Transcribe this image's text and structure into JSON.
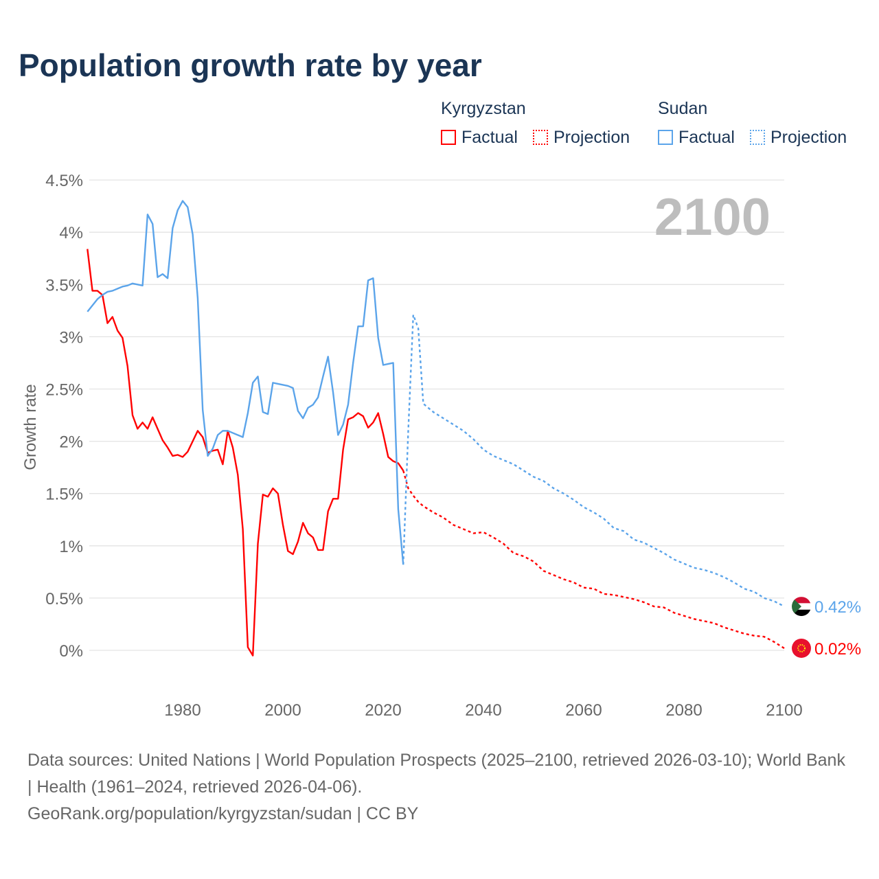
{
  "title": "Population growth rate by year",
  "legend": {
    "groups": [
      {
        "name": "Kyrgyzstan",
        "color": "#ff0000",
        "factual": "Factual",
        "projection": "Projection"
      },
      {
        "name": "Sudan",
        "color": "#5ba4ea",
        "factual": "Factual",
        "projection": "Projection"
      }
    ]
  },
  "footer": {
    "line1": "Data sources: United Nations | World Population Prospects (2025–2100, retrieved 2026-03-10); World Bank | Health (1961–2024, retrieved 2026-04-06).",
    "line2": "GeoRank.org/population/kyrgyzstan/sudan | CC BY"
  },
  "chart_data": {
    "type": "line",
    "title": "Population growth rate by year",
    "ylabel": "Growth rate",
    "xlabel": "",
    "year_label": "2100",
    "xlim": [
      1961,
      2100
    ],
    "ylim": [
      -0.3,
      4.5
    ],
    "yticks": [
      {
        "v": 0,
        "label": "0%"
      },
      {
        "v": 0.5,
        "label": "0.5%"
      },
      {
        "v": 1,
        "label": "1%"
      },
      {
        "v": 1.5,
        "label": "1.5%"
      },
      {
        "v": 2,
        "label": "2%"
      },
      {
        "v": 2.5,
        "label": "2.5%"
      },
      {
        "v": 3,
        "label": "3%"
      },
      {
        "v": 3.5,
        "label": "3.5%"
      },
      {
        "v": 4,
        "label": "4%"
      },
      {
        "v": 4.5,
        "label": "4.5%"
      }
    ],
    "xticks": [
      {
        "v": 1980,
        "label": "1980"
      },
      {
        "v": 2000,
        "label": "2000"
      },
      {
        "v": 2020,
        "label": "2020"
      },
      {
        "v": 2040,
        "label": "2040"
      },
      {
        "v": 2060,
        "label": "2060"
      },
      {
        "v": 2080,
        "label": "2080"
      },
      {
        "v": 2100,
        "label": "2100"
      }
    ],
    "series": [
      {
        "name": "Kyrgyzstan",
        "color": "#ff0000",
        "end_label": "0.02%",
        "factual": {
          "start": 1961,
          "values": [
            3.84,
            3.44,
            3.44,
            3.4,
            3.13,
            3.19,
            3.06,
            2.99,
            2.72,
            2.25,
            2.12,
            2.18,
            2.12,
            2.23,
            2.12,
            2.01,
            1.94,
            1.86,
            1.87,
            1.85,
            1.9,
            2.0,
            2.1,
            2.04,
            1.89,
            1.91,
            1.92,
            1.78,
            2.1,
            1.94,
            1.68,
            1.16,
            0.03,
            -0.05,
            1.02,
            1.49,
            1.47,
            1.55,
            1.5,
            1.2,
            0.95,
            0.92,
            1.04,
            1.22,
            1.12,
            1.08,
            0.96,
            0.96,
            1.33,
            1.45,
            1.45,
            1.92,
            2.21,
            2.23,
            2.27,
            2.24,
            2.13,
            2.18,
            2.27,
            2.07,
            1.85,
            1.81,
            1.79,
            1.72
          ]
        },
        "projection": {
          "x": [
            2024,
            2025,
            2026,
            2027,
            2028,
            2030,
            2032,
            2034,
            2036,
            2038,
            2040,
            2042,
            2044,
            2046,
            2048,
            2050,
            2052,
            2054,
            2056,
            2058,
            2060,
            2062,
            2064,
            2066,
            2068,
            2070,
            2072,
            2074,
            2076,
            2078,
            2080,
            2082,
            2084,
            2086,
            2088,
            2090,
            2092,
            2094,
            2096,
            2098,
            2100
          ],
          "values": [
            1.72,
            1.55,
            1.48,
            1.42,
            1.38,
            1.32,
            1.27,
            1.2,
            1.16,
            1.12,
            1.13,
            1.08,
            1.02,
            0.93,
            0.9,
            0.85,
            0.76,
            0.72,
            0.68,
            0.65,
            0.6,
            0.59,
            0.54,
            0.53,
            0.51,
            0.49,
            0.46,
            0.42,
            0.41,
            0.36,
            0.33,
            0.3,
            0.28,
            0.26,
            0.22,
            0.19,
            0.16,
            0.14,
            0.13,
            0.08,
            0.02
          ]
        }
      },
      {
        "name": "Sudan",
        "color": "#5ba4ea",
        "end_label": "0.42%",
        "factual": {
          "start": 1961,
          "values": [
            3.24,
            3.3,
            3.36,
            3.4,
            3.43,
            3.44,
            3.46,
            3.48,
            3.49,
            3.51,
            3.5,
            3.49,
            4.17,
            4.08,
            3.57,
            3.6,
            3.56,
            4.04,
            4.21,
            4.3,
            4.24,
            3.98,
            3.37,
            2.3,
            1.86,
            1.93,
            2.06,
            2.1,
            2.1,
            2.08,
            2.06,
            2.04,
            2.27,
            2.56,
            2.62,
            2.28,
            2.26,
            2.56,
            2.55,
            2.54,
            2.53,
            2.51,
            2.29,
            2.22,
            2.32,
            2.35,
            2.42,
            2.62,
            2.81,
            2.47,
            2.06,
            2.16,
            2.35,
            2.75,
            3.1,
            3.1,
            3.54,
            3.56,
            2.99,
            2.73,
            2.74,
            2.75,
            1.35,
            0.82
          ]
        },
        "projection": {
          "x": [
            2024,
            2025,
            2026,
            2027,
            2028,
            2029,
            2030,
            2032,
            2034,
            2036,
            2038,
            2040,
            2042,
            2044,
            2046,
            2048,
            2050,
            2052,
            2054,
            2056,
            2058,
            2060,
            2062,
            2064,
            2066,
            2068,
            2070,
            2072,
            2074,
            2076,
            2078,
            2080,
            2082,
            2084,
            2086,
            2088,
            2090,
            2092,
            2094,
            2096,
            2098,
            2100
          ],
          "values": [
            0.82,
            2.1,
            3.21,
            3.08,
            2.36,
            2.32,
            2.28,
            2.22,
            2.16,
            2.1,
            2.02,
            1.92,
            1.86,
            1.82,
            1.78,
            1.72,
            1.66,
            1.62,
            1.55,
            1.5,
            1.44,
            1.37,
            1.32,
            1.26,
            1.17,
            1.14,
            1.06,
            1.03,
            0.98,
            0.93,
            0.87,
            0.83,
            0.79,
            0.77,
            0.74,
            0.7,
            0.65,
            0.59,
            0.56,
            0.5,
            0.47,
            0.42
          ]
        }
      }
    ]
  }
}
